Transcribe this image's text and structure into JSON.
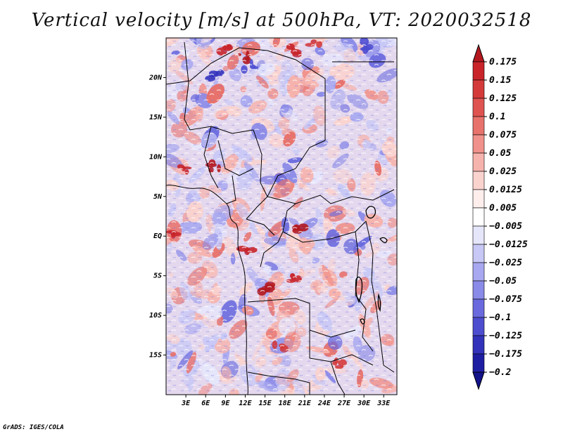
{
  "title": "Vertical velocity [m/s] at 500hPa, VT: 2020032518",
  "credit": "GrADS: IGES/COLA",
  "map": {
    "lon_labels": [
      "3E",
      "6E",
      "9E",
      "12E",
      "15E",
      "18E",
      "21E",
      "24E",
      "27E",
      "30E",
      "33E"
    ],
    "lon_values": [
      3,
      6,
      9,
      12,
      15,
      18,
      21,
      24,
      27,
      30,
      33
    ],
    "lat_labels": [
      "20N",
      "15N",
      "10N",
      "5N",
      "EQ",
      "5S",
      "10S",
      "15S"
    ],
    "lat_values": [
      20,
      15,
      10,
      5,
      0,
      -5,
      -10,
      -15
    ],
    "lon_range": [
      0,
      35
    ],
    "lat_range": [
      -20,
      25
    ]
  },
  "colorbar": {
    "labels": [
      "0.175",
      "0.15",
      "0.125",
      "0.1",
      "0.075",
      "0.05",
      "0.025",
      "0.0125",
      "0.005",
      "−0.005",
      "−0.0125",
      "−0.025",
      "−0.05",
      "−0.075",
      "−0.1",
      "−0.125",
      "−0.175",
      "−0.2"
    ],
    "colors": [
      "#b3181f",
      "#c8242a",
      "#d53a3a",
      "#df5350",
      "#e8726c",
      "#f0928b",
      "#f6b3ad",
      "#fad3cf",
      "#fdeeec",
      "#ffffff",
      "#e6e6fb",
      "#c8c8f6",
      "#a8a8f0",
      "#8a8ae8",
      "#6a6ade",
      "#4d4dd0",
      "#3232bb",
      "#1e1ea3",
      "#12128a"
    ]
  }
}
